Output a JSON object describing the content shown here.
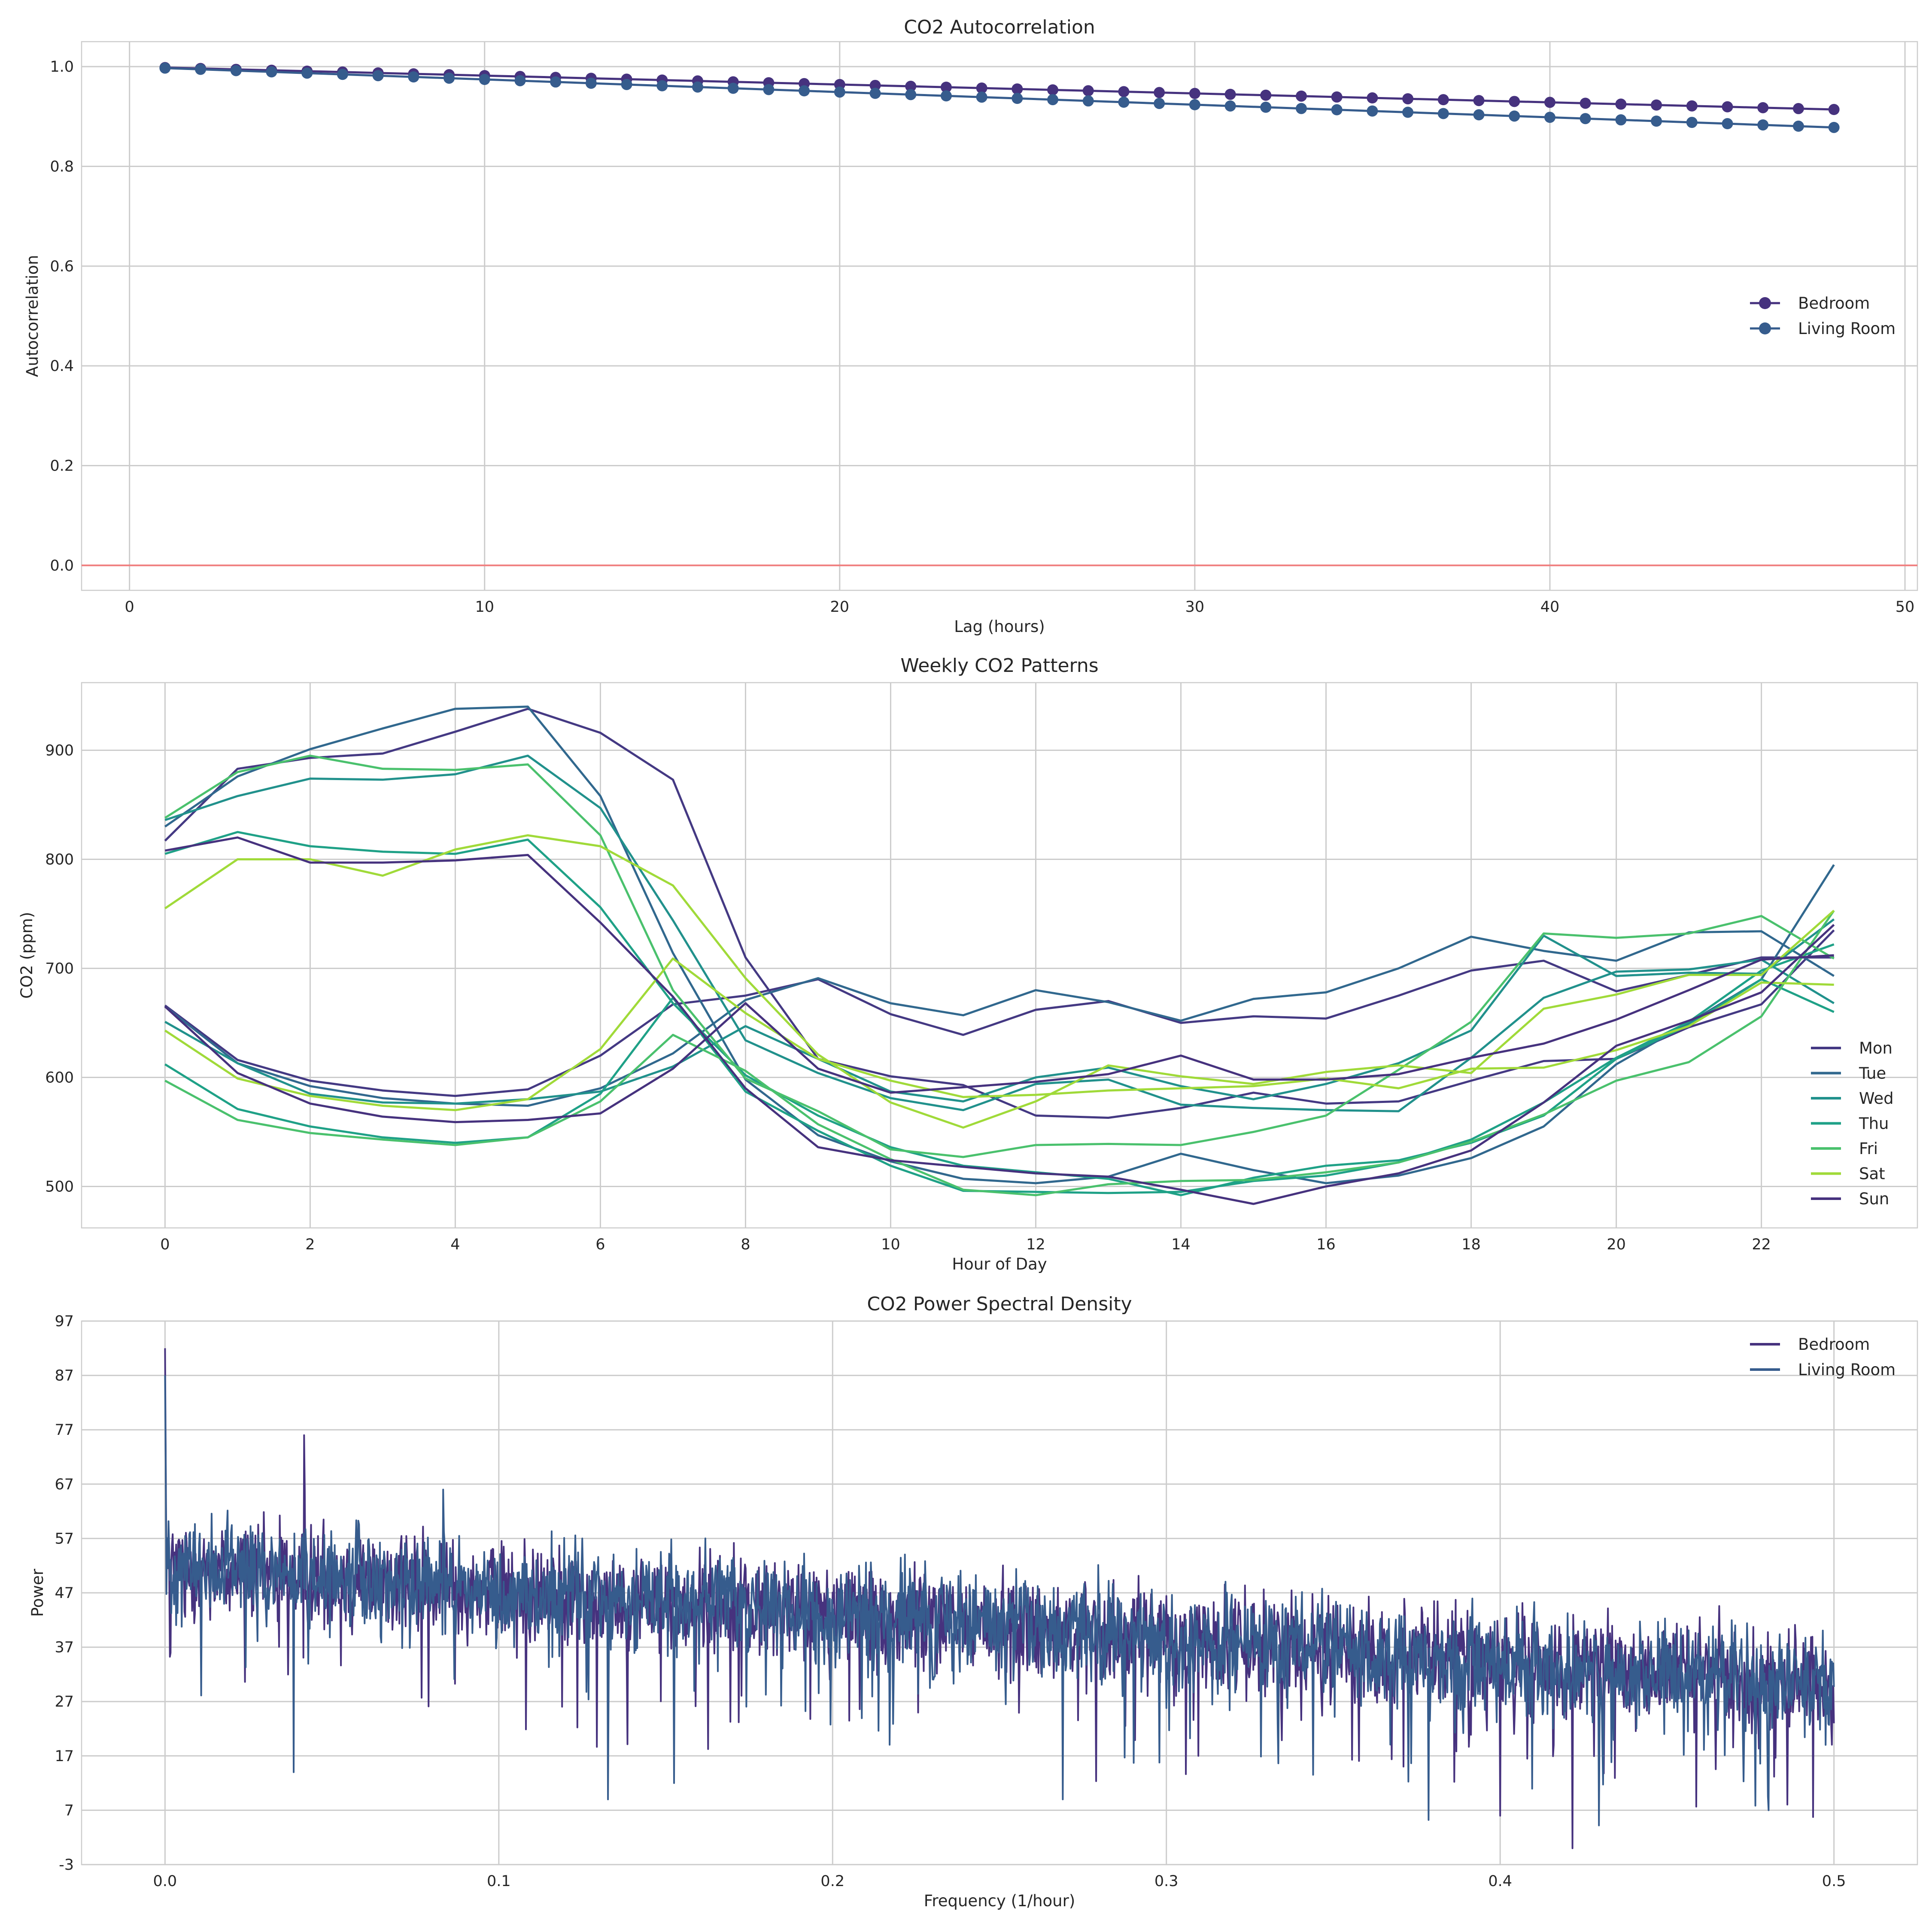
{
  "chart_data": [
    {
      "type": "line",
      "title": "CO2 Autocorrelation",
      "xlabel": "Lag (hours)",
      "ylabel": "Autocorrelation",
      "xlim": [
        -1.35,
        50.35
      ],
      "ylim": [
        -0.05,
        1.05
      ],
      "xticks": [
        0,
        10,
        20,
        30,
        40,
        50
      ],
      "yticks": [
        0.0,
        0.2,
        0.4,
        0.6,
        0.8,
        1.0
      ],
      "ytick_labels": [
        "0.0",
        "0.2",
        "0.4",
        "0.6",
        "0.8",
        "1.0"
      ],
      "grid": true,
      "legend_position": "center-right",
      "hline": {
        "y": 0,
        "color": "#f08080"
      },
      "markers": true,
      "series": [
        {
          "name": "Bedroom",
          "color": "#46327e",
          "x_start": 1,
          "x_end": 48,
          "y_start": 0.998,
          "y_end": 0.914
        },
        {
          "name": "Living Room",
          "color": "#365c8d",
          "x_start": 1,
          "x_end": 48,
          "y_start": 0.997,
          "y_end": 0.878
        }
      ]
    },
    {
      "type": "line",
      "title": "Weekly CO2 Patterns",
      "xlabel": "Hour of Day",
      "ylabel": "CO2 (ppm)",
      "xlim": [
        -1.15,
        24.15
      ],
      "ylim": [
        462,
        962
      ],
      "xticks": [
        0,
        2,
        4,
        6,
        8,
        10,
        12,
        14,
        16,
        18,
        20,
        22
      ],
      "yticks": [
        500,
        600,
        700,
        800,
        900
      ],
      "grid": true,
      "legend_position": "bottom-right",
      "x": [
        0,
        1,
        2,
        3,
        4,
        5,
        6,
        7,
        8,
        9,
        10,
        11,
        12,
        13,
        14,
        15,
        16,
        17,
        18,
        19,
        20,
        21,
        22,
        23
      ],
      "series": [
        {
          "name": "Mon",
          "color": "#443983",
          "lines": [
            [
              817,
              883,
              893,
              897,
              917,
              938,
              916,
              873,
              710,
              617,
              601,
              593,
              565,
              563,
              572,
              586,
              576,
              578,
              597,
              615,
              617,
              646,
              667,
              735
            ],
            [
              666,
              616,
              597,
              588,
              583,
              589,
              620,
              667,
              675,
              690,
              658,
              639,
              662,
              670,
              650,
              656,
              654,
              675,
              698,
              707,
              679,
              694,
              710,
              710
            ]
          ]
        },
        {
          "name": "Tue",
          "color": "#31688e",
          "lines": [
            [
              830,
              876,
              901,
              920,
              938,
              940,
              858,
              714,
              598,
              547,
              523,
              507,
              503,
              509,
              530,
              515,
              503,
              510,
              526,
              555,
              612,
              650,
              690,
              795
            ],
            [
              665,
              613,
              592,
              581,
              576,
              574,
              590,
              622,
              671,
              691,
              668,
              657,
              680,
              669,
              652,
              672,
              678,
              700,
              729,
              716,
              707,
              733,
              734,
              693
            ]
          ]
        },
        {
          "name": "Wed",
          "color": "#21918c",
          "lines": [
            [
              836,
              858,
              874,
              873,
              878,
              895,
              847,
              744,
              634,
              604,
              581,
              570,
              594,
              598,
              575,
              572,
              570,
              569,
              618,
              673,
              697,
              699,
              708,
              668
            ],
            [
              651,
              613,
              585,
              577,
              576,
              580,
              587,
              610,
              647,
              617,
              587,
              578,
              600,
              609,
              592,
              580,
              594,
              613,
              643,
              730,
              693,
              696,
              695,
              745
            ]
          ]
        },
        {
          "name": "Thu",
          "color": "#1fa187",
          "lines": [
            [
              805,
              825,
              812,
              807,
              805,
              818,
              756,
              668,
              602,
              565,
              536,
              519,
              513,
              507,
              492,
              508,
              519,
              524,
              540,
              565,
              617,
              648,
              690,
              660
            ],
            [
              612,
              571,
              555,
              545,
              540,
              545,
              585,
              673,
              587,
              551,
              519,
              496,
              495,
              494,
              495,
              505,
              510,
              522,
              543,
              577,
              618,
              651,
              698,
              722
            ]
          ]
        },
        {
          "name": "Fri",
          "color": "#4ac16d",
          "lines": [
            [
              838,
              880,
              895,
              883,
              882,
              887,
              822,
              680,
              599,
              569,
              534,
              527,
              538,
              539,
              538,
              550,
              565,
              607,
              651,
              732,
              728,
              732,
              748,
              709
            ],
            [
              597,
              561,
              549,
              543,
              538,
              545,
              578,
              639,
              606,
              557,
              525,
              497,
              492,
              502,
              505,
              506,
              513,
              522,
              541,
              566,
              597,
              614,
              656,
              753
            ]
          ]
        },
        {
          "name": "Sat",
          "color": "#a0da39",
          "lines": [
            [
              755,
              800,
              800,
              785,
              809,
              822,
              812,
              776,
              691,
              621,
              577,
              554,
              578,
              611,
              601,
              594,
              605,
              611,
              604,
              663,
              676,
              694,
              694,
              753
            ],
            [
              643,
              599,
              583,
              574,
              570,
              580,
              626,
              709,
              659,
              617,
              597,
              582,
              584,
              588,
              590,
              592,
              599,
              590,
              608,
              609,
              625,
              647,
              687,
              685
            ]
          ]
        },
        {
          "name": "Sun",
          "color": "#46327e",
          "lines": [
            [
              808,
              820,
              797,
              797,
              799,
              804,
              742,
              674,
              590,
              536,
              524,
              518,
              512,
              509,
              497,
              484,
              500,
              512,
              533,
              577,
              629,
              652,
              678,
              740
            ],
            [
              665,
              604,
              576,
              564,
              559,
              561,
              567,
              608,
              668,
              608,
              586,
              591,
              596,
              603,
              620,
              598,
              598,
              603,
              618,
              631,
              653,
              680,
              708,
              712
            ]
          ]
        }
      ]
    },
    {
      "type": "line",
      "title": "CO2 Power Spectral Density",
      "xlabel": "Frequency (1/hour)",
      "ylabel": "Power",
      "xlim": [
        -0.025,
        0.525
      ],
      "ylim": [
        -3,
        97
      ],
      "xticks": [
        0.0,
        0.1,
        0.2,
        0.3,
        0.4,
        0.5
      ],
      "xtick_labels": [
        "0.0",
        "0.1",
        "0.2",
        "0.3",
        "0.4",
        "0.5"
      ],
      "yticks": [
        -3,
        7,
        17,
        27,
        37,
        47,
        57,
        67,
        77,
        87,
        97
      ],
      "grid": true,
      "legend_position": "top-right",
      "trend": {
        "start": 52,
        "end": 30
      },
      "series": [
        {
          "name": "Bedroom",
          "color": "#46327e",
          "peaks": [
            {
              "x": 0.0,
              "y": 92
            },
            {
              "x": 0.0417,
              "y": 76
            }
          ],
          "dips": [
            {
              "x": 0.4,
              "y": 6
            },
            {
              "x": 0.4217,
              "y": 0
            }
          ]
        },
        {
          "name": "Living Room",
          "color": "#365c8d",
          "peaks": [
            {
              "x": 0.0,
              "y": 87
            },
            {
              "x": 0.0833,
              "y": 66
            },
            {
              "x": 0.125,
              "y": 57
            },
            {
              "x": 0.165,
              "y": 52
            },
            {
              "x": 0.208,
              "y": 52
            }
          ],
          "dips": [
            {
              "x": 0.0385,
              "y": 14
            },
            {
              "x": 0.1327,
              "y": 9
            },
            {
              "x": 0.1525,
              "y": 12
            },
            {
              "x": 0.2689,
              "y": 9
            },
            {
              "x": 0.4805,
              "y": 7
            }
          ]
        }
      ]
    }
  ]
}
